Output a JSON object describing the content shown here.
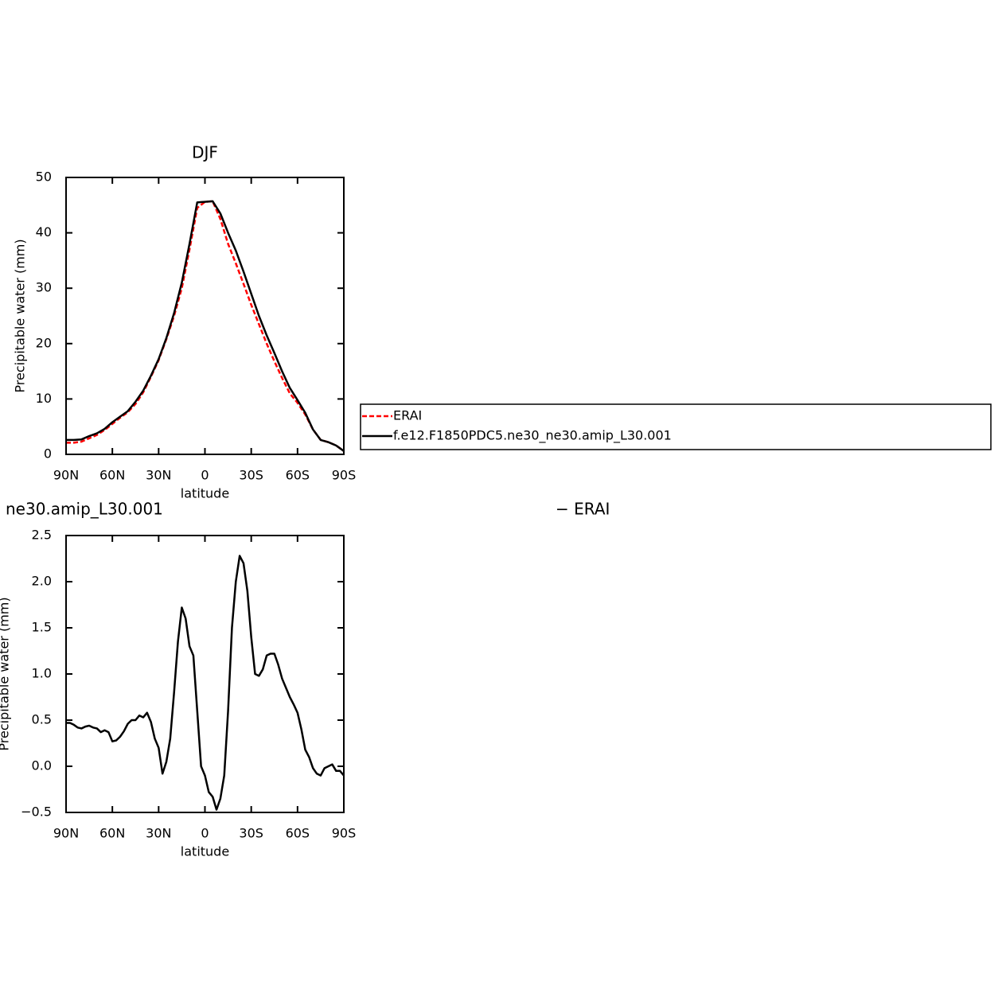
{
  "chart_data": [
    {
      "type": "line",
      "title": "DJF",
      "xlabel": "latitude",
      "ylabel": "Precipitable water (mm)",
      "x": [
        90,
        85,
        80,
        75,
        70,
        65,
        60,
        55,
        50,
        45,
        40,
        35,
        30,
        25,
        20,
        15,
        10,
        5,
        0,
        -5,
        -10,
        -15,
        -20,
        -25,
        -30,
        -35,
        -40,
        -45,
        -50,
        -55,
        -60,
        -65,
        -70,
        -75,
        -80,
        -85,
        -90
      ],
      "series": [
        {
          "name": "ERAI",
          "color": "#ff0000",
          "style": "dashed",
          "values": [
            2.1,
            2.1,
            2.3,
            2.9,
            3.5,
            4.4,
            5.5,
            6.6,
            7.6,
            9.1,
            11.2,
            14,
            17,
            20.8,
            25,
            30,
            37,
            44.5,
            45.6,
            45.7,
            42.5,
            38,
            34.5,
            30.8,
            27,
            23.5,
            20,
            16.8,
            13.8,
            11,
            9.3,
            7.2,
            4.5,
            2.6,
            2.2,
            1.6,
            0.6
          ]
        },
        {
          "name": "f.e12.F1850PDC5.ne30_ne30.amip_L30.001",
          "color": "#000000",
          "style": "solid",
          "values": [
            2.6,
            2.6,
            2.7,
            3.3,
            3.8,
            4.6,
            5.8,
            6.8,
            7.8,
            9.5,
            11.5,
            14.2,
            17.2,
            21,
            25.5,
            31,
            38,
            45.5,
            45.6,
            45.7,
            43.5,
            40,
            36.8,
            33,
            29,
            25,
            21.5,
            18.3,
            15,
            12,
            9.8,
            7.5,
            4.5,
            2.6,
            2.2,
            1.6,
            0.6
          ]
        }
      ],
      "xlim": [
        90,
        -90
      ],
      "xticks": [
        {
          "value": 90,
          "label": "90N"
        },
        {
          "value": 60,
          "label": "60N"
        },
        {
          "value": 30,
          "label": "30N"
        },
        0,
        {
          "value": -30,
          "label": "30S"
        },
        {
          "value": -60,
          "label": "60S"
        },
        {
          "value": -90,
          "label": "90S"
        }
      ],
      "ylim": [
        0,
        50
      ],
      "yticks": [
        0,
        10,
        20,
        30,
        40,
        50
      ],
      "legend": "right"
    },
    {
      "type": "line",
      "title_left": "ne30.amip_L30.001",
      "title_right": "− ERAI",
      "xlabel": "latitude",
      "ylabel": "Precipitable water (mm)",
      "x": [
        90,
        87.5,
        85,
        82.5,
        80,
        77.5,
        75,
        72.5,
        70,
        67.5,
        65,
        62.5,
        60,
        57.5,
        55,
        52.5,
        50,
        47.5,
        45,
        42.5,
        40,
        37.5,
        35,
        32.5,
        30,
        27.5,
        25,
        22.5,
        20,
        17.5,
        15,
        12.5,
        10,
        7.5,
        5,
        2.5,
        0,
        -2.5,
        -5,
        -7.5,
        -10,
        -12.5,
        -15,
        -17.5,
        -20,
        -22.5,
        -25,
        -27.5,
        -30,
        -32.5,
        -35,
        -37.5,
        -40,
        -42.5,
        -45,
        -47.5,
        -50,
        -52.5,
        -55,
        -57.5,
        -60,
        -62.5,
        -65,
        -67.5,
        -70,
        -72.5,
        -75,
        -77.5,
        -80,
        -82.5,
        -85,
        -87.5,
        -90
      ],
      "series": [
        {
          "color": "#000000",
          "style": "solid",
          "values": [
            0.47,
            0.47,
            0.45,
            0.42,
            0.41,
            0.43,
            0.44,
            0.42,
            0.41,
            0.37,
            0.39,
            0.37,
            0.27,
            0.28,
            0.32,
            0.38,
            0.46,
            0.5,
            0.5,
            0.55,
            0.53,
            0.58,
            0.48,
            0.3,
            0.2,
            -0.08,
            0.05,
            0.3,
            0.8,
            1.35,
            1.72,
            1.6,
            1.3,
            1.2,
            0.6,
            0.0,
            -0.1,
            -0.28,
            -0.33,
            -0.47,
            -0.35,
            -0.1,
            0.6,
            1.5,
            2.0,
            2.28,
            2.2,
            1.9,
            1.4,
            1.0,
            0.98,
            1.05,
            1.2,
            1.22,
            1.22,
            1.1,
            0.95,
            0.85,
            0.75,
            0.67,
            0.58,
            0.4,
            0.18,
            0.1,
            -0.02,
            -0.08,
            -0.1,
            -0.02,
            0.0,
            0.02,
            -0.05,
            -0.05,
            -0.1
          ]
        }
      ],
      "xlim": [
        90,
        -90
      ],
      "xticks": [
        {
          "value": 90,
          "label": "90N"
        },
        {
          "value": 60,
          "label": "60N"
        },
        {
          "value": 30,
          "label": "30N"
        },
        0,
        {
          "value": -30,
          "label": "30S"
        },
        {
          "value": -60,
          "label": "60S"
        },
        {
          "value": -90,
          "label": "90S"
        }
      ],
      "ylim": [
        -0.5,
        2.5
      ],
      "yticks": [
        {
          "value": -0.5,
          "label": "−0.5"
        },
        {
          "value": 0,
          "label": "0.0"
        },
        0.5,
        {
          "value": 1,
          "label": "1.0"
        },
        1.5,
        {
          "value": 2,
          "label": "2.0"
        },
        2.5
      ]
    }
  ]
}
